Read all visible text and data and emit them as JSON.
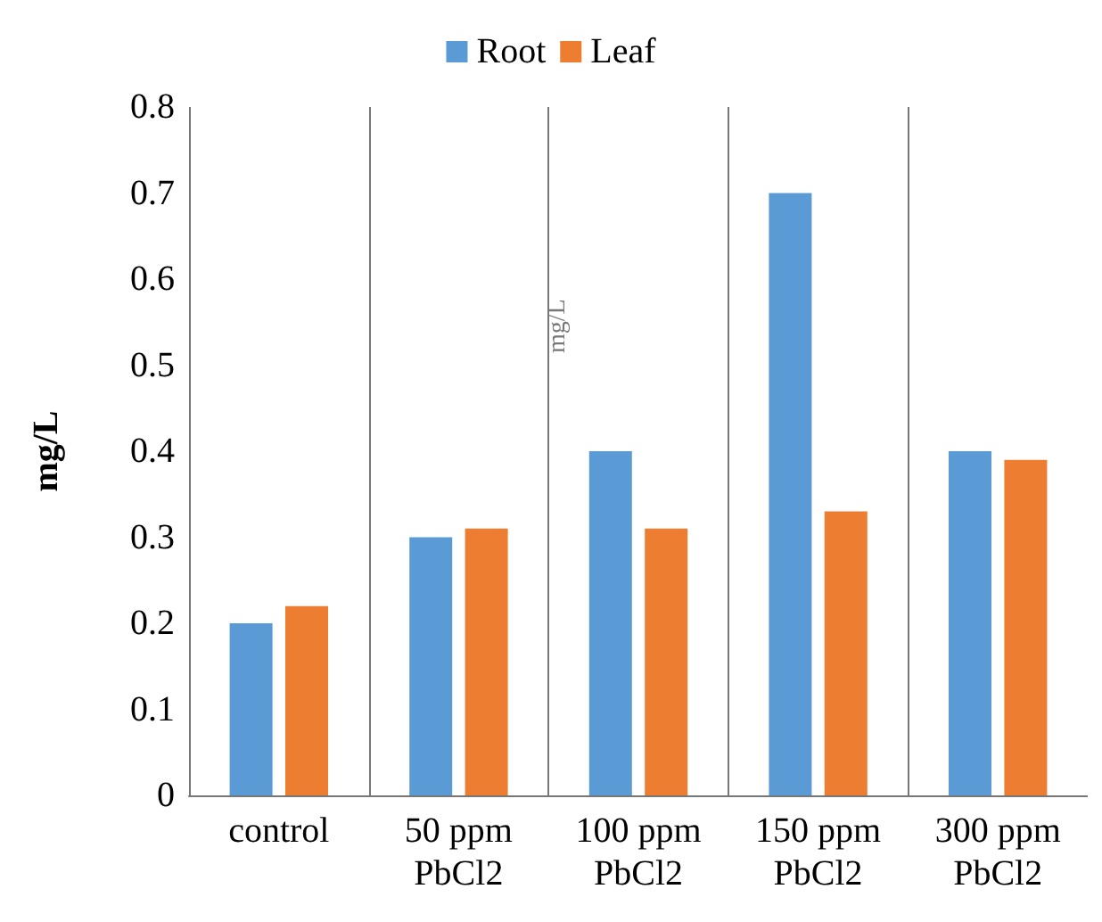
{
  "chart_data": {
    "type": "bar",
    "ylabel": "mg/L",
    "categories": [
      "control",
      "50 ppm\nPbCl2",
      "100 ppm\nPbCl2",
      "150 ppm\nPbCl2",
      "300 ppm\nPbCl2"
    ],
    "series": [
      {
        "name": "Root",
        "color": "#5b9bd5",
        "values": [
          0.2,
          0.3,
          0.4,
          0.7,
          0.4
        ]
      },
      {
        "name": "Leaf",
        "color": "#ed7d31",
        "values": [
          0.22,
          0.31,
          0.31,
          0.33,
          0.39
        ]
      }
    ],
    "ylim": [
      0,
      0.8
    ],
    "yticks": [
      0,
      0.1,
      0.2,
      0.3,
      0.4,
      0.5,
      0.6,
      0.7,
      0.8
    ],
    "grid": "x",
    "legend": "top",
    "annotations": [
      "mg/L"
    ]
  }
}
